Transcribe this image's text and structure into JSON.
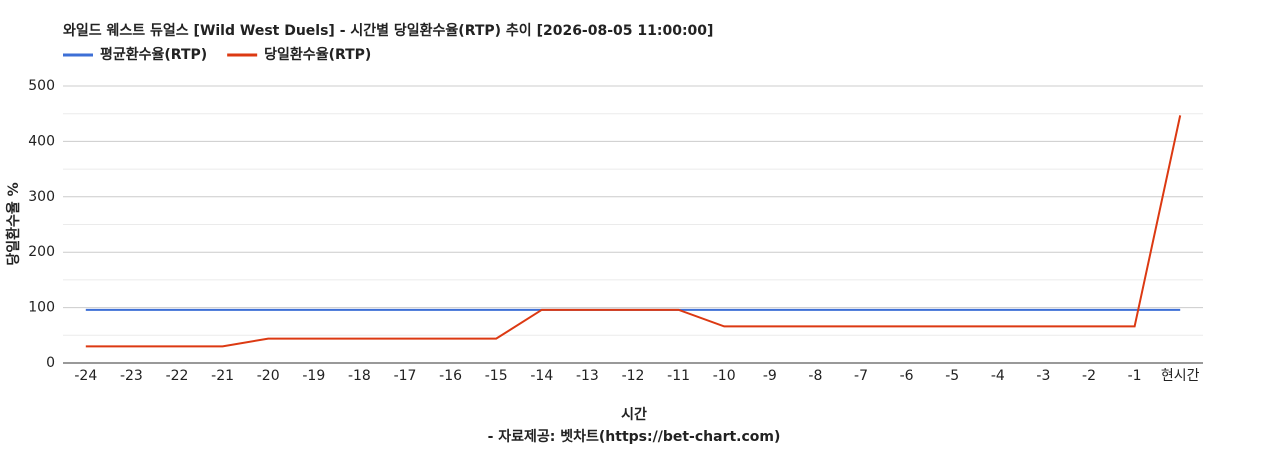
{
  "chart_data": {
    "type": "line",
    "title": "와일드 웨스트 듀얼스 [Wild West Duels] - 시간별 당일환수율(RTP) 추이 [2026-08-05 11:00:00]",
    "x_label": "시간",
    "y_label": "당일환수율 %",
    "source": "- 자료제공: 벳차트(https://bet-chart.com)",
    "categories": [
      "-24",
      "-23",
      "-22",
      "-21",
      "-20",
      "-19",
      "-18",
      "-17",
      "-16",
      "-15",
      "-14",
      "-13",
      "-12",
      "-11",
      "-10",
      "-9",
      "-8",
      "-7",
      "-6",
      "-5",
      "-4",
      "-3",
      "-2",
      "-1",
      "현시간"
    ],
    "series": [
      {
        "name": "평균환수율(RTP)",
        "color": "#3d6fd6",
        "values": [
          96,
          96,
          96,
          96,
          96,
          96,
          96,
          96,
          96,
          96,
          96,
          96,
          96,
          96,
          96,
          96,
          96,
          96,
          96,
          96,
          96,
          96,
          96,
          96,
          96
        ]
      },
      {
        "name": "당일환수율(RTP)",
        "color": "#dc3912",
        "values": [
          30,
          30,
          30,
          30,
          44,
          44,
          44,
          44,
          44,
          44,
          96,
          96,
          96,
          96,
          66,
          66,
          66,
          66,
          66,
          66,
          66,
          66,
          66,
          66,
          447
        ]
      }
    ],
    "ylim": [
      0,
      500
    ],
    "yticks": [
      0,
      100,
      200,
      300,
      400,
      500
    ],
    "grid": true,
    "legend": "top-left"
  }
}
